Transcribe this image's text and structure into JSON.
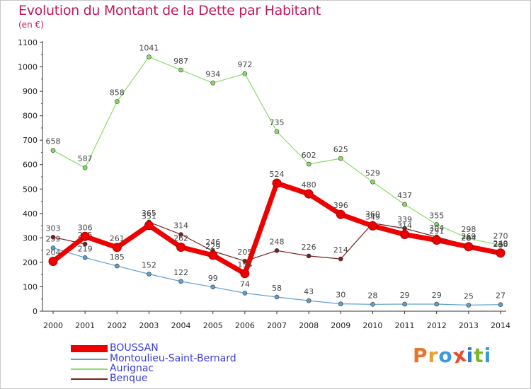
{
  "header": {
    "title": "Evolution du Montant de la Dette par Habitant",
    "subtitle": "(en €)"
  },
  "logo": {
    "text": "Proxiti",
    "letter_colors": [
      "#e8732a",
      "#e8a12a",
      "#3a9ad9",
      "#e84a2a",
      "#2a7ad9",
      "#7ab82a",
      "#3a9ad9"
    ]
  },
  "chart_data": {
    "type": "line",
    "title": "Evolution du Montant de la Dette par Habitant",
    "subtitle": "(en €)",
    "xlabel": "",
    "ylabel": "",
    "x": [
      "2000",
      "2001",
      "2002",
      "2003",
      "2004",
      "2005",
      "2006",
      "2007",
      "2008",
      "2009",
      "2010",
      "2011",
      "2012",
      "2013",
      "2014"
    ],
    "ylim": [
      0,
      1100
    ],
    "yticks": [
      0,
      100,
      200,
      300,
      400,
      500,
      600,
      700,
      800,
      900,
      1000,
      1100
    ],
    "grid": false,
    "legend_position": "bottom-left",
    "series": [
      {
        "name": "BOUSSAN",
        "color": "#ee0000",
        "values": [
          204,
          306,
          261,
          351,
          262,
          229,
          154,
          524,
          480,
          396,
          349,
          314,
          291,
          264,
          238
        ]
      },
      {
        "name": "Montoulieu-Saint-Bernard",
        "color": "#5fa0d0",
        "values": [
          259,
          219,
          185,
          152,
          122,
          99,
          74,
          58,
          43,
          30,
          28,
          29,
          29,
          25,
          27
        ]
      },
      {
        "name": "Aurignac",
        "color": "#88dd66",
        "values": [
          658,
          587,
          858,
          1041,
          987,
          934,
          972,
          735,
          602,
          625,
          529,
          437,
          355,
          298,
          270
        ]
      },
      {
        "name": "Benque",
        "color": "#7a2020",
        "values": [
          303,
          275,
          null,
          365,
          314,
          246,
          205,
          248,
          226,
          214,
          360,
          339,
          304,
          269,
          240
        ]
      }
    ]
  }
}
